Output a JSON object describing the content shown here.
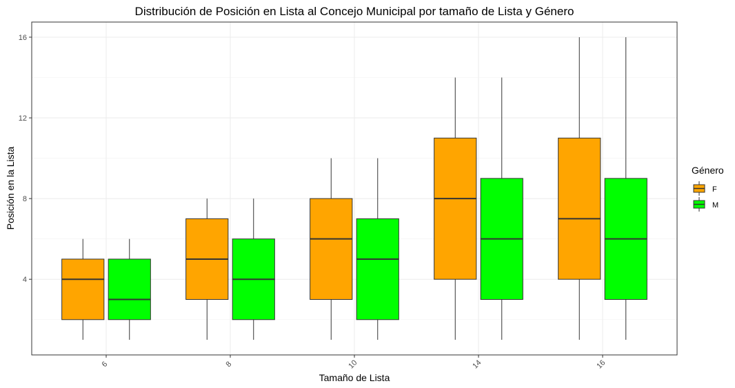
{
  "chart_data": {
    "type": "boxplot",
    "title": "Distribución de Posición en Lista al Concejo Municipal por tamaño de Lista y Género",
    "xlabel": "Tamaño de Lista",
    "ylabel": "Posición en la Lista",
    "categories": [
      "6",
      "8",
      "10",
      "14",
      "16"
    ],
    "y_ticks": [
      "4",
      "8",
      "12",
      "16"
    ],
    "ylim": [
      0.25,
      16.75
    ],
    "grid": true,
    "legend": {
      "title": "Género",
      "position": "right"
    },
    "series": [
      {
        "name": "F",
        "color": "#FFA500",
        "boxes": [
          {
            "min": 1,
            "q1": 2,
            "median": 4,
            "q3": 5,
            "max": 6
          },
          {
            "min": 1,
            "q1": 3,
            "median": 5,
            "q3": 7,
            "max": 8
          },
          {
            "min": 1,
            "q1": 3,
            "median": 6,
            "q3": 8,
            "max": 10
          },
          {
            "min": 1,
            "q1": 4,
            "median": 8,
            "q3": 11,
            "max": 14
          },
          {
            "min": 1,
            "q1": 4,
            "median": 7,
            "q3": 11,
            "max": 16
          }
        ]
      },
      {
        "name": "M",
        "color": "#00FF00",
        "boxes": [
          {
            "min": 1,
            "q1": 2,
            "median": 3,
            "q3": 5,
            "max": 6
          },
          {
            "min": 1,
            "q1": 2,
            "median": 4,
            "q3": 6,
            "max": 8
          },
          {
            "min": 1,
            "q1": 2,
            "median": 5,
            "q3": 7,
            "max": 10
          },
          {
            "min": 1,
            "q1": 3,
            "median": 6,
            "q3": 9,
            "max": 14
          },
          {
            "min": 1,
            "q1": 3,
            "median": 6,
            "q3": 9,
            "max": 16
          }
        ]
      }
    ]
  }
}
